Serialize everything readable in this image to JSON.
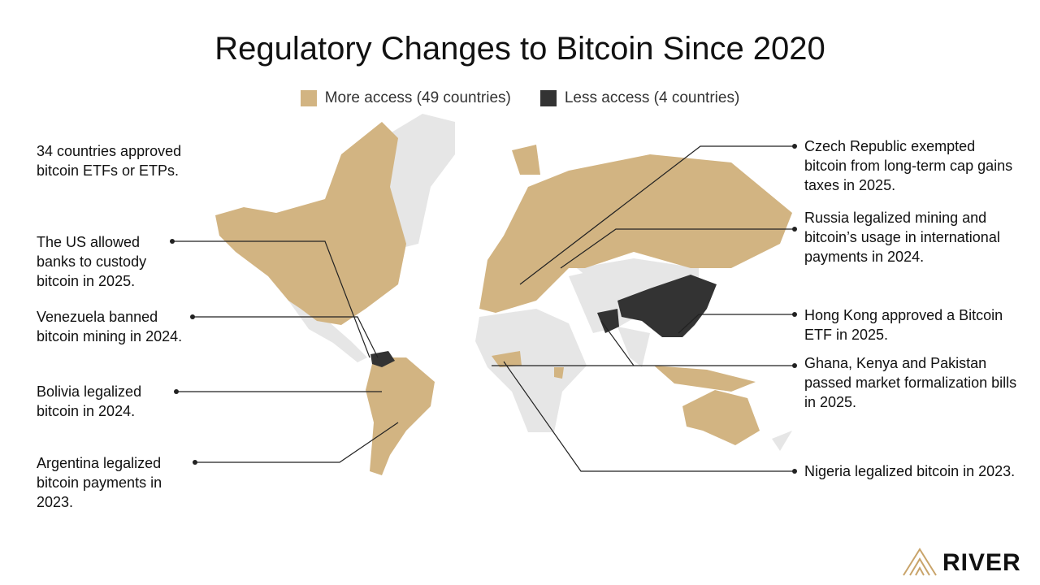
{
  "title": "Regulatory Changes to Bitcoin Since 2020",
  "legend": [
    {
      "label": "More access (49 countries)",
      "color": "#d2b482"
    },
    {
      "label": "Less access (4 countries)",
      "color": "#333333"
    }
  ],
  "annotations_left": [
    "34 countries approved bitcoin ETFs or ETPs.",
    "The US allowed banks to custody bitcoin in 2025.",
    "Venezuela banned bitcoin mining in 2024.",
    "Bolivia legalized bitcoin in 2024.",
    "Argentina legalized bitcoin payments in 2023."
  ],
  "annotations_right": [
    "Czech Republic exempted bitcoin from long-term cap gains taxes in 2025.",
    "Russia legalized mining and bitcoin’s usage in international payments in 2024.",
    "Hong Kong approved a Bitcoin ETF in 2025.",
    "Ghana, Kenya and Pakistan passed market formalization bills in 2025.",
    "Nigeria legalized bitcoin in 2023."
  ],
  "logo": "RIVER"
}
